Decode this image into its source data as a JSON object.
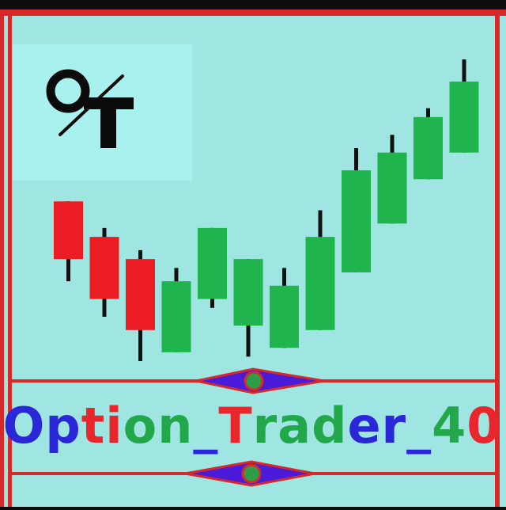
{
  "logo": {
    "text": "OT",
    "initial_1": "O",
    "initial_2": "T",
    "name": "option-trader-logo"
  },
  "chart_data": {
    "type": "candlestick",
    "values_note": "",
    "candles": [
      {
        "open": 66,
        "close": 53,
        "high": 66,
        "low": 48
      },
      {
        "open": 58,
        "close": 44,
        "high": 60,
        "low": 40
      },
      {
        "open": 53,
        "close": 37,
        "high": 55,
        "low": 30
      },
      {
        "open": 32,
        "close": 48,
        "high": 51,
        "low": 32
      },
      {
        "open": 44,
        "close": 60,
        "high": 60,
        "low": 42
      },
      {
        "open": 38,
        "close": 53,
        "high": 53,
        "low": 31
      },
      {
        "open": 33,
        "close": 47,
        "high": 51,
        "low": 33
      },
      {
        "open": 37,
        "close": 58,
        "high": 64,
        "low": 37
      },
      {
        "open": 50,
        "close": 73,
        "high": 78,
        "low": 50
      },
      {
        "open": 61,
        "close": 77,
        "high": 81,
        "low": 61
      },
      {
        "open": 71,
        "close": 85,
        "high": 87,
        "low": 71
      },
      {
        "open": 77,
        "close": 93,
        "high": 98,
        "low": 77
      }
    ],
    "colors": {
      "up": "#1fb44e",
      "down": "#ec1c24",
      "wick": "#111111"
    }
  },
  "brand": {
    "segments": [
      {
        "text": "Op",
        "color": "#2a27d8"
      },
      {
        "text": "ti",
        "color": "#e8262c"
      },
      {
        "text": "on",
        "color": "#22a84b"
      },
      {
        "text": "_",
        "color": "#2a27d8"
      },
      {
        "text": "T",
        "color": "#e8262c"
      },
      {
        "text": "rad",
        "color": "#22a84b"
      },
      {
        "text": "er_",
        "color": "#2a27d8"
      },
      {
        "text": "4",
        "color": "#22a84b"
      },
      {
        "text": "0",
        "color": "#e8262c"
      }
    ]
  },
  "colors": {
    "background": "#9fe6e3",
    "logo_panel": "#a9f1ef",
    "frame": "#d62a2a",
    "diamond": "#4a1bd8",
    "dot": "#2f9c47"
  }
}
